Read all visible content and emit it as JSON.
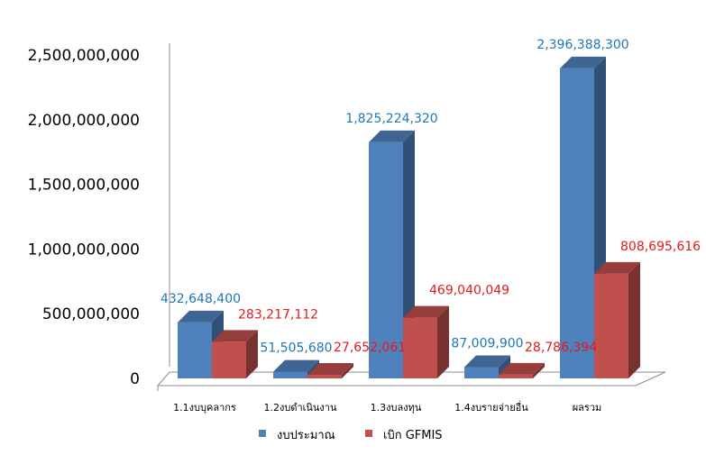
{
  "chart_data": {
    "type": "bar",
    "subtype": "3d-clustered-column",
    "title": "",
    "xlabel": "",
    "ylabel": "",
    "ylim": [
      0,
      2500000000
    ],
    "yticks": [
      0,
      500000000,
      1000000000,
      1500000000,
      2000000000,
      2500000000
    ],
    "ytick_labels": [
      "0",
      "500,000,000",
      "1,000,000,000",
      "1,500,000,000",
      "2,000,000,000",
      "2,500,000,000"
    ],
    "grid": false,
    "legend": "bottom",
    "categories": [
      "1.1งบบุคลากร",
      "1.2งบดำเนินงาน",
      "1.3งบลงทุน",
      "1.4งบรายจ่ายอื่น",
      "ผลรวม"
    ],
    "series": [
      {
        "name": "งบประมาณ",
        "color": "#4F81BD",
        "label_color": "#1F77B4",
        "values": [
          432648400,
          51505680,
          1825224320,
          87009900,
          2396388300
        ],
        "labels": [
          "432,648,400",
          "51,505,680",
          "1,825,224,320",
          "87,009,900",
          "2,396,388,300"
        ]
      },
      {
        "name": "เบิก GFMIS",
        "color": "#C0504D",
        "label_color": "#E31A1C",
        "values": [
          283217112,
          27652061,
          469040049,
          28786394,
          808695616
        ],
        "labels": [
          "283,217,112",
          "27,652,061",
          "469,040,049",
          "28,786,394",
          "808,695,616"
        ]
      }
    ]
  }
}
